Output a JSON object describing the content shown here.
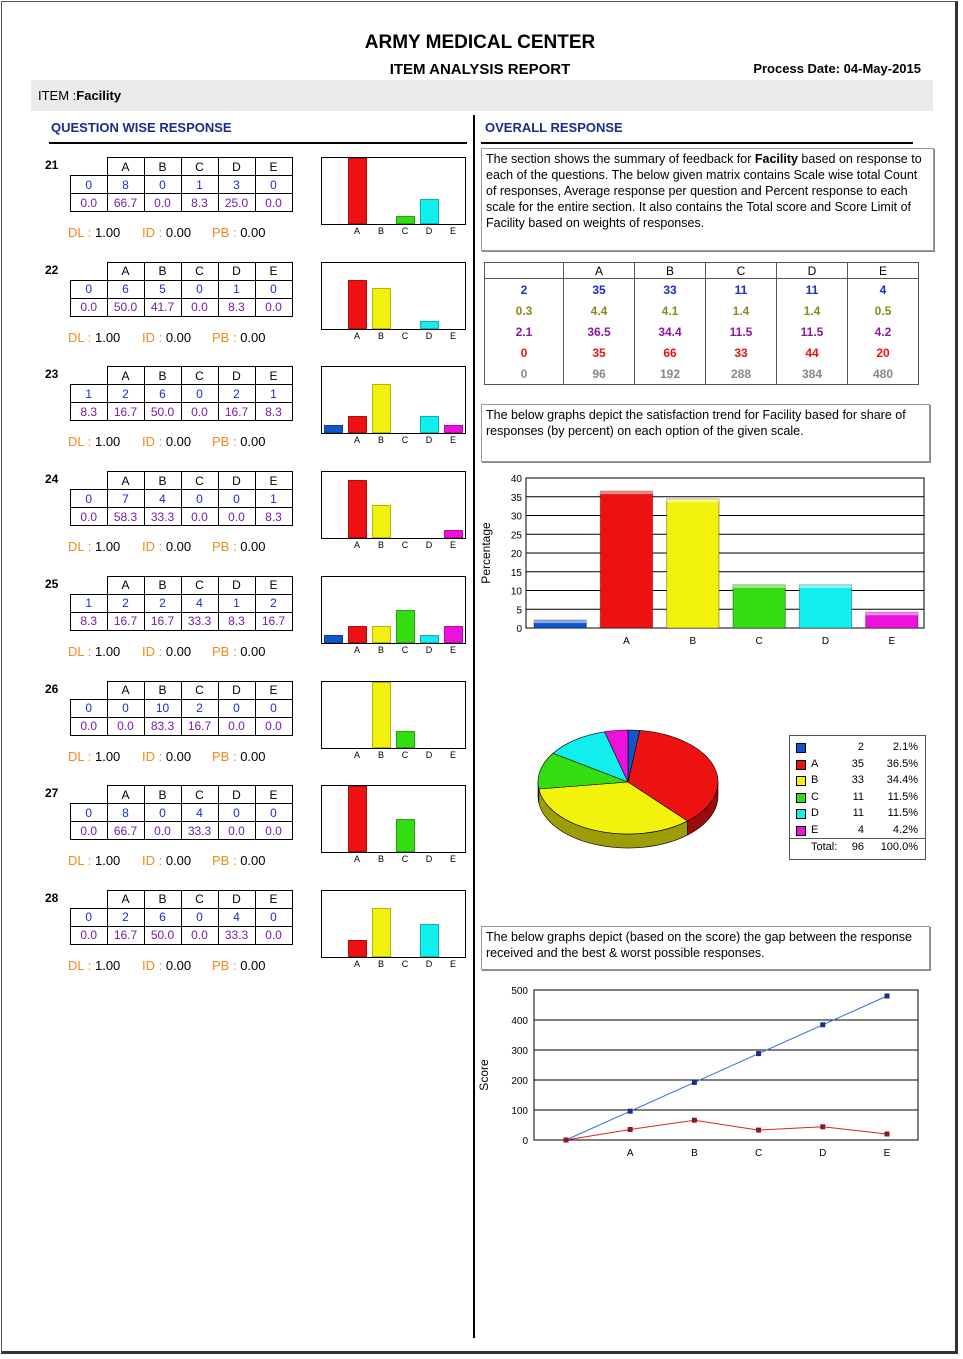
{
  "header": {
    "title": "ARMY MEDICAL CENTER",
    "subtitle": "ITEM ANALYSIS REPORT",
    "process_date_label": "Process Date:",
    "process_date": "04-May-2015"
  },
  "item": {
    "label": "ITEM :",
    "value": "Facility"
  },
  "left_heading": "QUESTION WISE RESPONSE",
  "right_heading": "OVERALL RESPONSE",
  "options": [
    "A",
    "B",
    "C",
    "D",
    "E"
  ],
  "stat_labels": {
    "dl": "DL",
    "id": "ID",
    "pb": "PB"
  },
  "colors": {
    "A": "#ee1111",
    "B": "#f2f20d",
    "C": "#33dd11",
    "D": "#11eeee",
    "E": "#ee11dd",
    "blank": "#1155cc"
  },
  "questions": [
    {
      "num": "21",
      "blank": "0",
      "counts": [
        "8",
        "0",
        "1",
        "3",
        "0"
      ],
      "blank_pct": "0.0",
      "pcts": [
        "66.7",
        "0.0",
        "8.3",
        "25.0",
        "0.0"
      ],
      "dl": "1.00",
      "id": "0.00",
      "pb": "0.00",
      "bars": [
        0,
        66.7,
        0,
        8.3,
        25.0,
        0
      ]
    },
    {
      "num": "22",
      "blank": "0",
      "counts": [
        "6",
        "5",
        "0",
        "1",
        "0"
      ],
      "blank_pct": "0.0",
      "pcts": [
        "50.0",
        "41.7",
        "0.0",
        "8.3",
        "0.0"
      ],
      "dl": "1.00",
      "id": "0.00",
      "pb": "0.00",
      "bars": [
        0,
        50.0,
        41.7,
        0,
        8.3,
        0
      ]
    },
    {
      "num": "23",
      "blank": "1",
      "counts": [
        "2",
        "6",
        "0",
        "2",
        "1"
      ],
      "blank_pct": "8.3",
      "pcts": [
        "16.7",
        "50.0",
        "0.0",
        "16.7",
        "8.3"
      ],
      "dl": "1.00",
      "id": "0.00",
      "pb": "0.00",
      "bars": [
        8.3,
        16.7,
        50.0,
        0,
        16.7,
        8.3
      ]
    },
    {
      "num": "24",
      "blank": "0",
      "counts": [
        "7",
        "4",
        "0",
        "0",
        "1"
      ],
      "blank_pct": "0.0",
      "pcts": [
        "58.3",
        "33.3",
        "0.0",
        "0.0",
        "8.3"
      ],
      "dl": "1.00",
      "id": "0.00",
      "pb": "0.00",
      "bars": [
        0,
        58.3,
        33.3,
        0,
        0,
        8.3
      ]
    },
    {
      "num": "25",
      "blank": "1",
      "counts": [
        "2",
        "2",
        "4",
        "1",
        "2"
      ],
      "blank_pct": "8.3",
      "pcts": [
        "16.7",
        "16.7",
        "33.3",
        "8.3",
        "16.7"
      ],
      "dl": "1.00",
      "id": "0.00",
      "pb": "0.00",
      "bars": [
        8.3,
        16.7,
        16.7,
        33.3,
        8.3,
        16.7
      ]
    },
    {
      "num": "26",
      "blank": "0",
      "counts": [
        "0",
        "10",
        "2",
        "0",
        "0"
      ],
      "blank_pct": "0.0",
      "pcts": [
        "0.0",
        "83.3",
        "16.7",
        "0.0",
        "0.0"
      ],
      "dl": "1.00",
      "id": "0.00",
      "pb": "0.00",
      "bars": [
        0,
        0,
        83.3,
        16.7,
        0,
        0
      ]
    },
    {
      "num": "27",
      "blank": "0",
      "counts": [
        "8",
        "0",
        "4",
        "0",
        "0"
      ],
      "blank_pct": "0.0",
      "pcts": [
        "66.7",
        "0.0",
        "33.3",
        "0.0",
        "0.0"
      ],
      "dl": "1.00",
      "id": "0.00",
      "pb": "0.00",
      "bars": [
        0,
        66.7,
        0,
        33.3,
        0,
        0
      ]
    },
    {
      "num": "28",
      "blank": "0",
      "counts": [
        "2",
        "6",
        "0",
        "4",
        "0"
      ],
      "blank_pct": "0.0",
      "pcts": [
        "16.7",
        "50.0",
        "0.0",
        "33.3",
        "0.0"
      ],
      "dl": "1.00",
      "id": "0.00",
      "pb": "0.00",
      "bars": [
        0,
        16.7,
        50.0,
        0,
        33.3,
        0
      ]
    }
  ],
  "summary_text_pre": "The section shows the summary of feedback for ",
  "summary_text_bold": "Facility",
  "summary_text_post": "  based on response to each of the questions. The below given matrix contains Scale wise total Count of responses, Average response per question and Percent response to each scale for the entire section. It also contains the Total score and Score Limit of Facility based on weights of responses.",
  "matrix": {
    "headers": [
      "",
      "A",
      "B",
      "C",
      "D",
      "E"
    ],
    "rows": [
      {
        "color": "#1a2ccf",
        "cells": [
          "2",
          "35",
          "33",
          "11",
          "11",
          "4"
        ]
      },
      {
        "color": "#8a8a1a",
        "cells": [
          "0.3",
          "4.4",
          "4.1",
          "1.4",
          "1.4",
          "0.5"
        ]
      },
      {
        "color": "#8a1a9a",
        "cells": [
          "2.1",
          "36.5",
          "34.4",
          "11.5",
          "11.5",
          "4.2"
        ]
      },
      {
        "color": "#ee1111",
        "cells": [
          "0",
          "35",
          "66",
          "33",
          "44",
          "20"
        ]
      },
      {
        "color": "#888888",
        "cells": [
          "0",
          "96",
          "192",
          "288",
          "384",
          "480"
        ]
      }
    ]
  },
  "trend_text": "The below graphs depict the satisfaction trend for Facility based for share of  responses (by percent) on each option of the given scale.",
  "gap_text": "The below graphs depict (based on the score) the gap between the response received  and the best & worst possible responses.",
  "chart_data": [
    {
      "type": "bar",
      "categories": [
        "",
        "A",
        "B",
        "C",
        "D",
        "E"
      ],
      "values": [
        2.1,
        36.5,
        34.4,
        11.5,
        11.5,
        4.2
      ],
      "ylabel": "Percentage",
      "ylim": [
        0,
        40
      ],
      "yticks": [
        "0",
        "5",
        "10",
        "15",
        "20",
        "25",
        "30",
        "35",
        "40"
      ],
      "grid": true
    },
    {
      "type": "pie",
      "labels": [
        "",
        "A",
        "B",
        "C",
        "D",
        "E"
      ],
      "counts": [
        "2",
        "35",
        "33",
        "11",
        "11",
        "4"
      ],
      "percents": [
        "2.1%",
        "36.5%",
        "34.4%",
        "11.5%",
        "11.5%",
        "4.2%"
      ],
      "values": [
        2.1,
        36.5,
        34.4,
        11.5,
        11.5,
        4.2
      ],
      "total_label": "Total:",
      "total_count": "96",
      "total_percent": "100.0%",
      "legend_position": "right"
    },
    {
      "type": "line",
      "categories": [
        "",
        "A",
        "B",
        "C",
        "D",
        "E"
      ],
      "ylabel": "Score",
      "ylim": [
        0,
        500
      ],
      "yticks": [
        "0",
        "100",
        "200",
        "300",
        "400",
        "500"
      ],
      "series": [
        {
          "values": [
            0,
            96,
            192,
            288,
            384,
            480
          ]
        },
        {
          "values": [
            0,
            35,
            66,
            33,
            44,
            20
          ]
        }
      ],
      "grid": true
    }
  ]
}
